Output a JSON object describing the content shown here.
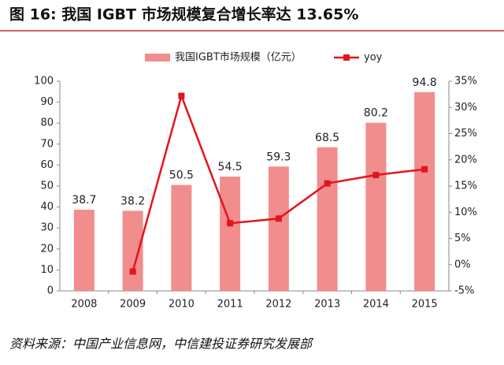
{
  "chart_data": {
    "type": "bar",
    "title": "图 16: 我国 IGBT 市场规模复合增长率达 13.65%",
    "source": "资料来源：中国产业信息网，中信建投证券研究发展部",
    "categories": [
      "2008",
      "2009",
      "2010",
      "2011",
      "2012",
      "2013",
      "2014",
      "2015"
    ],
    "series": [
      {
        "name": "我国IGBT市场规模（亿元）",
        "type": "bar",
        "color": "#f28d8d",
        "values": [
          38.7,
          38.2,
          50.5,
          54.5,
          59.3,
          68.5,
          80.2,
          94.8
        ]
      },
      {
        "name": "yoy",
        "type": "line",
        "axis": "y2",
        "color": "#e3141c",
        "values": [
          null,
          -1.3,
          32.2,
          7.9,
          8.8,
          15.5,
          17.1,
          18.2
        ]
      }
    ],
    "ylim": [
      0,
      100
    ],
    "yticks": [
      0,
      10,
      20,
      30,
      40,
      50,
      60,
      70,
      80,
      90,
      100
    ],
    "y2lim": [
      -5,
      35
    ],
    "y2ticks": [
      {
        "value": -5,
        "label": "-5%"
      },
      {
        "value": 0,
        "label": "0%"
      },
      {
        "value": 5,
        "label": "5%"
      },
      {
        "value": 10,
        "label": "10%"
      },
      {
        "value": 15,
        "label": "15%"
      },
      {
        "value": 20,
        "label": "20%"
      },
      {
        "value": 25,
        "label": "25%"
      },
      {
        "value": 30,
        "label": "30%"
      },
      {
        "value": 35,
        "label": "35%"
      }
    ],
    "legend": "top"
  }
}
